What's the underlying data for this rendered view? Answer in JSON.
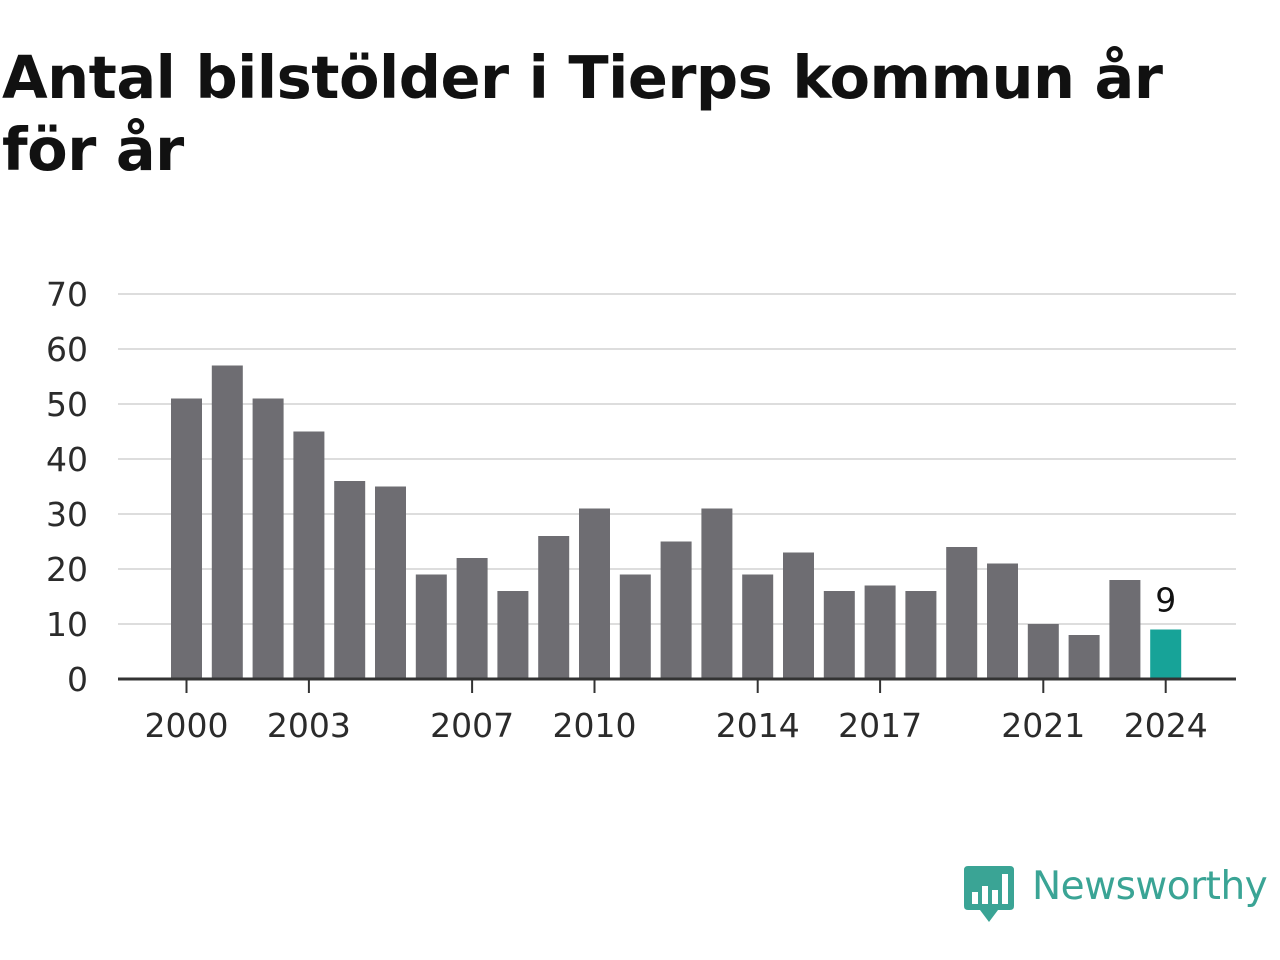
{
  "title": "Antal bilstölder i Tierps kommun år för år",
  "brand": {
    "name": "Newsworthy",
    "icon": "newsworthy-logo-icon",
    "color": "#3aa495"
  },
  "colors": {
    "bar": "#6e6d72",
    "highlight": "#17a398",
    "grid": "#dddddd",
    "axis": "#333333"
  },
  "chart_data": {
    "type": "bar",
    "title": "Antal bilstölder i Tierps kommun år för år",
    "xlabel": "",
    "ylabel": "",
    "categories": [
      "2000",
      "2001",
      "2002",
      "2003",
      "2004",
      "2005",
      "2006",
      "2007",
      "2008",
      "2009",
      "2010",
      "2011",
      "2012",
      "2013",
      "2014",
      "2015",
      "2016",
      "2017",
      "2018",
      "2019",
      "2020",
      "2021",
      "2022",
      "2023",
      "2024"
    ],
    "values": [
      51,
      57,
      51,
      45,
      36,
      35,
      19,
      22,
      16,
      26,
      31,
      19,
      25,
      31,
      19,
      23,
      16,
      17,
      16,
      24,
      21,
      10,
      8,
      18,
      9
    ],
    "x_tick_labels": [
      "2000",
      "2003",
      "2007",
      "2010",
      "2014",
      "2017",
      "2021",
      "2024"
    ],
    "y_ticks": [
      0,
      10,
      20,
      30,
      40,
      50,
      60,
      70
    ],
    "ylim": [
      0,
      70
    ],
    "grid": true,
    "legend": "none",
    "highlight": {
      "category": "2024",
      "label": "9"
    }
  }
}
